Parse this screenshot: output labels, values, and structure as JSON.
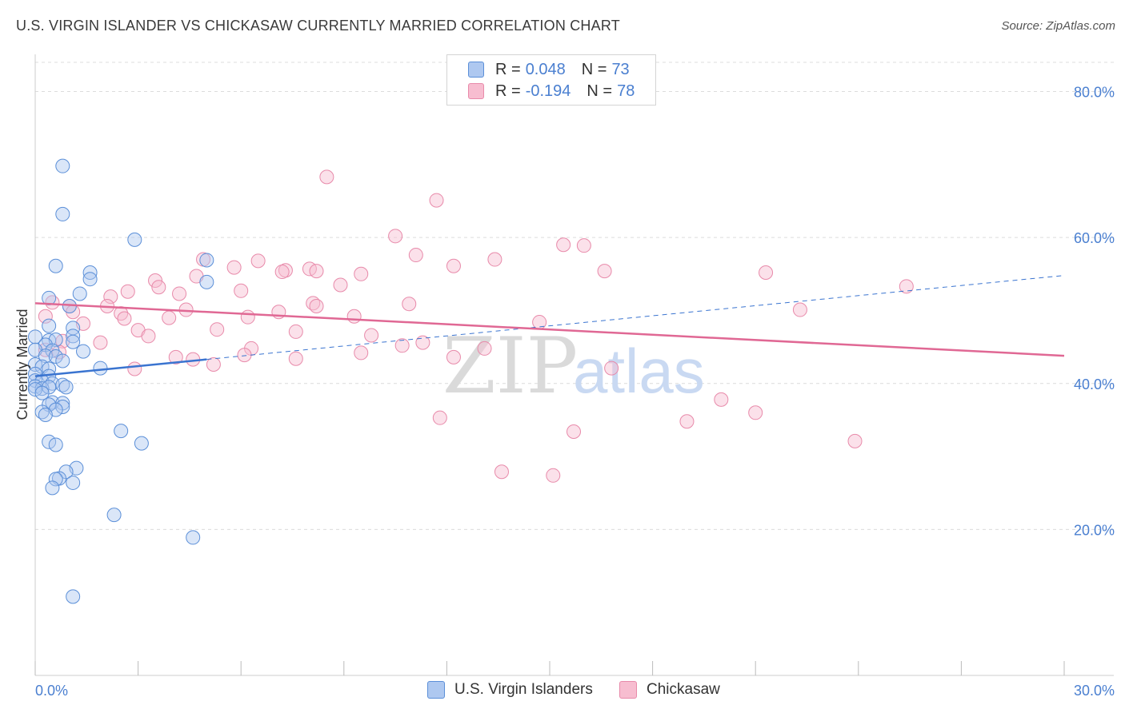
{
  "title": "U.S. VIRGIN ISLANDER VS CHICKASAW CURRENTLY MARRIED CORRELATION CHART",
  "source": "Source: ZipAtlas.com",
  "watermark": {
    "zip": "ZIP",
    "atlas": "atlas"
  },
  "legend": {
    "series1": {
      "r_label": "R =",
      "r_value": "0.048",
      "n_label": "N =",
      "n_value": "73"
    },
    "series2": {
      "r_label": "R =",
      "r_value": "-0.194",
      "n_label": "N =",
      "n_value": "78"
    }
  },
  "bottom_legend": [
    "U.S. Virgin Islanders",
    "Chickasaw"
  ],
  "colors": {
    "blue_fill": "#aec8f0",
    "blue_stroke": "#5b8fd8",
    "blue_line": "#3a74d0",
    "pink_fill": "#f7bdd0",
    "pink_stroke": "#e88aaa",
    "pink_line": "#e06894",
    "tick_text": "#4a7fd0",
    "grid": "#dcdcdc"
  },
  "chart_data": {
    "type": "scatter",
    "title": "U.S. VIRGIN ISLANDER VS CHICKASAW CURRENTLY MARRIED CORRELATION CHART",
    "xlabel": "",
    "ylabel": "Currently Married",
    "xlim": [
      0,
      30
    ],
    "ylim": [
      0,
      84
    ],
    "x_tick_labels": [
      {
        "value": 0,
        "label": "0.0%"
      },
      {
        "value": 30,
        "label": "30.0%"
      }
    ],
    "y_tick_labels": [
      {
        "value": 20,
        "label": "20.0%"
      },
      {
        "value": 40,
        "label": "40.0%"
      },
      {
        "value": 60,
        "label": "60.0%"
      },
      {
        "value": 80,
        "label": "80.0%"
      }
    ],
    "series": [
      {
        "name": "U.S. Virgin Islanders",
        "r": 0.048,
        "n": 73,
        "trend": {
          "x0": 0,
          "y0": 41.0,
          "x1": 5.0,
          "y1": 43.3,
          "dash_to_x": 30,
          "dash_to_y": 54.8
        },
        "points": [
          [
            0.8,
            69.8
          ],
          [
            0.8,
            63.2
          ],
          [
            0.6,
            56.1
          ],
          [
            2.9,
            59.7
          ],
          [
            1.6,
            55.2
          ],
          [
            1.6,
            54.3
          ],
          [
            5.0,
            53.9
          ],
          [
            5.0,
            56.9
          ],
          [
            0.4,
            51.7
          ],
          [
            1.3,
            52.3
          ],
          [
            1.0,
            50.6
          ],
          [
            0.4,
            47.9
          ],
          [
            1.1,
            47.6
          ],
          [
            0.0,
            46.4
          ],
          [
            0.4,
            45.9
          ],
          [
            0.6,
            46.0
          ],
          [
            1.1,
            46.5
          ],
          [
            1.1,
            45.7
          ],
          [
            0.3,
            45.3
          ],
          [
            0.5,
            44.5
          ],
          [
            1.4,
            44.4
          ],
          [
            0.0,
            44.6
          ],
          [
            0.3,
            43.8
          ],
          [
            0.6,
            43.7
          ],
          [
            0.8,
            43.1
          ],
          [
            0.0,
            42.6
          ],
          [
            0.2,
            42.3
          ],
          [
            1.9,
            42.1
          ],
          [
            0.4,
            42.0
          ],
          [
            0.0,
            41.3
          ],
          [
            0.4,
            41.0
          ],
          [
            0.0,
            40.4
          ],
          [
            0.2,
            40.3
          ],
          [
            0.5,
            40.0
          ],
          [
            0.8,
            39.8
          ],
          [
            0.0,
            39.6
          ],
          [
            0.2,
            39.3
          ],
          [
            0.9,
            39.5
          ],
          [
            0.4,
            39.5
          ],
          [
            0.0,
            39.2
          ],
          [
            0.2,
            38.7
          ],
          [
            0.5,
            37.4
          ],
          [
            0.8,
            37.3
          ],
          [
            0.4,
            37.1
          ],
          [
            0.8,
            36.8
          ],
          [
            0.6,
            36.4
          ],
          [
            0.2,
            36.1
          ],
          [
            0.3,
            35.7
          ],
          [
            2.5,
            33.5
          ],
          [
            0.4,
            32.0
          ],
          [
            0.6,
            31.6
          ],
          [
            3.1,
            31.8
          ],
          [
            1.2,
            28.4
          ],
          [
            0.9,
            27.9
          ],
          [
            0.7,
            27.0
          ],
          [
            0.6,
            26.9
          ],
          [
            1.1,
            26.4
          ],
          [
            0.5,
            25.7
          ],
          [
            2.3,
            22.0
          ],
          [
            4.6,
            18.9
          ],
          [
            1.1,
            10.8
          ]
        ]
      },
      {
        "name": "Chickasaw",
        "r": -0.194,
        "n": 78,
        "trend": {
          "x0": 0,
          "y0": 51.0,
          "x1": 30,
          "y1": 43.8
        },
        "points": [
          [
            8.5,
            68.3
          ],
          [
            11.7,
            65.1
          ],
          [
            10.5,
            60.2
          ],
          [
            15.4,
            59.0
          ],
          [
            16.0,
            58.9
          ],
          [
            11.1,
            57.6
          ],
          [
            4.9,
            57.0
          ],
          [
            13.4,
            57.0
          ],
          [
            6.5,
            56.8
          ],
          [
            12.2,
            56.1
          ],
          [
            5.8,
            55.9
          ],
          [
            8.0,
            55.7
          ],
          [
            7.3,
            55.5
          ],
          [
            8.2,
            55.4
          ],
          [
            7.2,
            55.3
          ],
          [
            16.6,
            55.4
          ],
          [
            21.3,
            55.2
          ],
          [
            9.5,
            55.0
          ],
          [
            4.7,
            54.7
          ],
          [
            3.5,
            54.1
          ],
          [
            8.9,
            53.5
          ],
          [
            3.6,
            53.2
          ],
          [
            25.4,
            53.3
          ],
          [
            6.0,
            52.7
          ],
          [
            2.7,
            52.6
          ],
          [
            4.2,
            52.3
          ],
          [
            2.2,
            51.9
          ],
          [
            0.5,
            51.1
          ],
          [
            8.1,
            51.0
          ],
          [
            8.2,
            50.6
          ],
          [
            10.9,
            50.9
          ],
          [
            1.0,
            50.6
          ],
          [
            2.1,
            50.6
          ],
          [
            4.4,
            50.1
          ],
          [
            22.3,
            50.1
          ],
          [
            2.5,
            49.6
          ],
          [
            9.3,
            49.2
          ],
          [
            7.1,
            49.8
          ],
          [
            2.6,
            48.9
          ],
          [
            0.3,
            49.2
          ],
          [
            3.9,
            49.0
          ],
          [
            6.2,
            49.1
          ],
          [
            1.1,
            49.8
          ],
          [
            14.7,
            48.4
          ],
          [
            1.4,
            48.2
          ],
          [
            3.0,
            47.3
          ],
          [
            5.3,
            47.4
          ],
          [
            7.6,
            47.1
          ],
          [
            3.3,
            46.5
          ],
          [
            9.8,
            46.6
          ],
          [
            0.8,
            45.8
          ],
          [
            1.9,
            45.6
          ],
          [
            11.3,
            45.6
          ],
          [
            10.7,
            45.2
          ],
          [
            6.3,
            44.8
          ],
          [
            13.1,
            44.8
          ],
          [
            0.3,
            44.6
          ],
          [
            0.7,
            44.3
          ],
          [
            6.1,
            43.9
          ],
          [
            9.5,
            44.2
          ],
          [
            4.1,
            43.6
          ],
          [
            4.6,
            43.3
          ],
          [
            12.2,
            43.6
          ],
          [
            7.6,
            43.4
          ],
          [
            5.2,
            42.6
          ],
          [
            2.9,
            42.0
          ],
          [
            16.8,
            42.1
          ],
          [
            20.0,
            37.8
          ],
          [
            21.0,
            36.0
          ],
          [
            11.8,
            35.3
          ],
          [
            19.0,
            34.8
          ],
          [
            15.7,
            33.4
          ],
          [
            23.9,
            32.1
          ],
          [
            13.6,
            27.9
          ],
          [
            15.1,
            27.4
          ]
        ]
      }
    ]
  }
}
